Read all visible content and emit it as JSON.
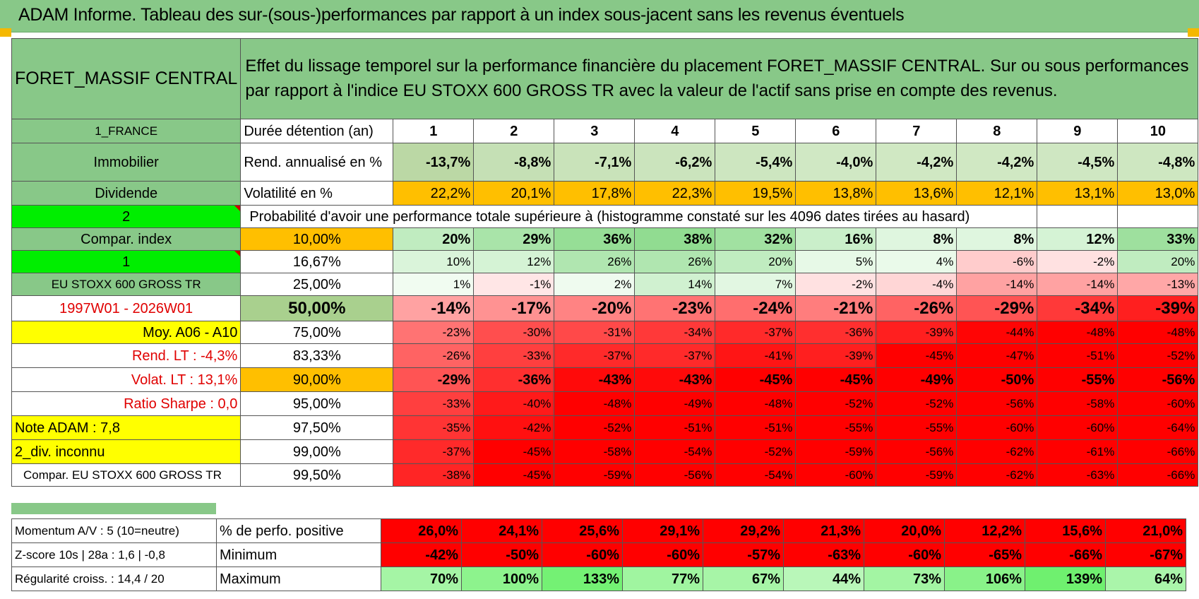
{
  "title": "ADAM Informe. Tableau des sur-(sous-)performances par rapport à un index sous-jacent sans les revenus éventuels",
  "header": {
    "fund_name": "FORET_MASSIF CENTRAL",
    "description": "Effet du lissage temporel sur la performance financière du placement FORET_MASSIF CENTRAL. Sur ou sous performances par rapport à l'indice EU STOXX 600 GROSS TR avec la valeur de l'actif sans prise en compte des revenus."
  },
  "left_labels": {
    "country": "1_FRANCE",
    "category": "Immobilier",
    "dividend": "Dividende",
    "option_2": "2",
    "compar_index": "Compar. index",
    "option_1": "1",
    "index_name": "EU STOXX 600 GROSS TR",
    "period": "1997W01 - 2026W01",
    "moy": "Moy. A06 - A10",
    "rend_lt": "Rend. LT :    -4,3%",
    "volat_lt": "Volat. LT :    13,1%",
    "sharpe": "Ratio Sharpe :     0,0",
    "note": "Note ADAM : 7,8",
    "div": "2_div. inconnu",
    "compar_full": "Compar. EU STOXX 600 GROSS TR"
  },
  "row_labels": {
    "duration": "Durée détention (an)",
    "rend": "Rend. annualisé en %",
    "volat": "Volatilité en %",
    "proba": "Probabilité d'avoir une performance totale supérieure à (histogramme constaté sur les 4096 dates tirées au hasard)"
  },
  "durations": [
    "1",
    "2",
    "3",
    "4",
    "5",
    "6",
    "7",
    "8",
    "9",
    "10"
  ],
  "rend": [
    "-13,7%",
    "-8,8%",
    "-7,1%",
    "-6,2%",
    "-5,4%",
    "-4,0%",
    "-4,2%",
    "-4,2%",
    "-4,5%",
    "-4,8%"
  ],
  "volat": [
    "22,2%",
    "20,1%",
    "17,8%",
    "22,3%",
    "19,5%",
    "13,8%",
    "13,6%",
    "12,1%",
    "13,1%",
    "13,0%"
  ],
  "percentiles": [
    {
      "label": "10,00%",
      "values": [
        "20%",
        "29%",
        "36%",
        "38%",
        "32%",
        "16%",
        "8%",
        "8%",
        "12%",
        "33%"
      ]
    },
    {
      "label": "16,67%",
      "values": [
        "10%",
        "12%",
        "26%",
        "26%",
        "20%",
        "5%",
        "4%",
        "-6%",
        "-2%",
        "20%"
      ]
    },
    {
      "label": "25,00%",
      "values": [
        "1%",
        "-1%",
        "2%",
        "14%",
        "7%",
        "-2%",
        "-4%",
        "-14%",
        "-14%",
        "-13%"
      ]
    },
    {
      "label": "50,00%",
      "values": [
        "-14%",
        "-17%",
        "-20%",
        "-23%",
        "-24%",
        "-21%",
        "-26%",
        "-29%",
        "-34%",
        "-39%"
      ]
    },
    {
      "label": "75,00%",
      "values": [
        "-23%",
        "-30%",
        "-31%",
        "-34%",
        "-37%",
        "-36%",
        "-39%",
        "-44%",
        "-48%",
        "-48%"
      ]
    },
    {
      "label": "83,33%",
      "values": [
        "-26%",
        "-33%",
        "-37%",
        "-37%",
        "-41%",
        "-39%",
        "-45%",
        "-47%",
        "-51%",
        "-52%"
      ]
    },
    {
      "label": "90,00%",
      "values": [
        "-29%",
        "-36%",
        "-43%",
        "-43%",
        "-45%",
        "-45%",
        "-49%",
        "-50%",
        "-55%",
        "-56%"
      ]
    },
    {
      "label": "95,00%",
      "values": [
        "-33%",
        "-40%",
        "-48%",
        "-49%",
        "-48%",
        "-52%",
        "-52%",
        "-56%",
        "-58%",
        "-60%"
      ]
    },
    {
      "label": "97,50%",
      "values": [
        "-35%",
        "-42%",
        "-52%",
        "-51%",
        "-51%",
        "-55%",
        "-55%",
        "-60%",
        "-60%",
        "-64%"
      ]
    },
    {
      "label": "99,00%",
      "values": [
        "-37%",
        "-45%",
        "-58%",
        "-54%",
        "-52%",
        "-59%",
        "-56%",
        "-62%",
        "-61%",
        "-66%"
      ]
    },
    {
      "label": "99,50%",
      "values": [
        "-38%",
        "-45%",
        "-59%",
        "-56%",
        "-54%",
        "-60%",
        "-59%",
        "-62%",
        "-63%",
        "-66%"
      ]
    }
  ],
  "stats": [
    {
      "left": "Momentum A/V : 5 (10=neutre)",
      "label": "% de perfo. positive",
      "values": [
        "26,0%",
        "24,1%",
        "25,6%",
        "29,1%",
        "29,2%",
        "21,3%",
        "20,0%",
        "12,2%",
        "15,6%",
        "21,0%"
      ]
    },
    {
      "left": "Z-score 10s | 28a : 1,6 | -0,8",
      "label": "Minimum",
      "values": [
        "-42%",
        "-50%",
        "-60%",
        "-60%",
        "-57%",
        "-63%",
        "-60%",
        "-65%",
        "-66%",
        "-67%"
      ]
    },
    {
      "left": "Régularité croiss. : 14,4 / 20",
      "label": "Maximum",
      "values": [
        "70%",
        "100%",
        "133%",
        "77%",
        "67%",
        "44%",
        "73%",
        "106%",
        "139%",
        "64%"
      ]
    }
  ],
  "colors": {
    "header_green": "#88c888",
    "bright_green": "#00ee00",
    "yellow": "#ffff00",
    "orange": "#ffbf00",
    "red_text": "#e00000"
  }
}
